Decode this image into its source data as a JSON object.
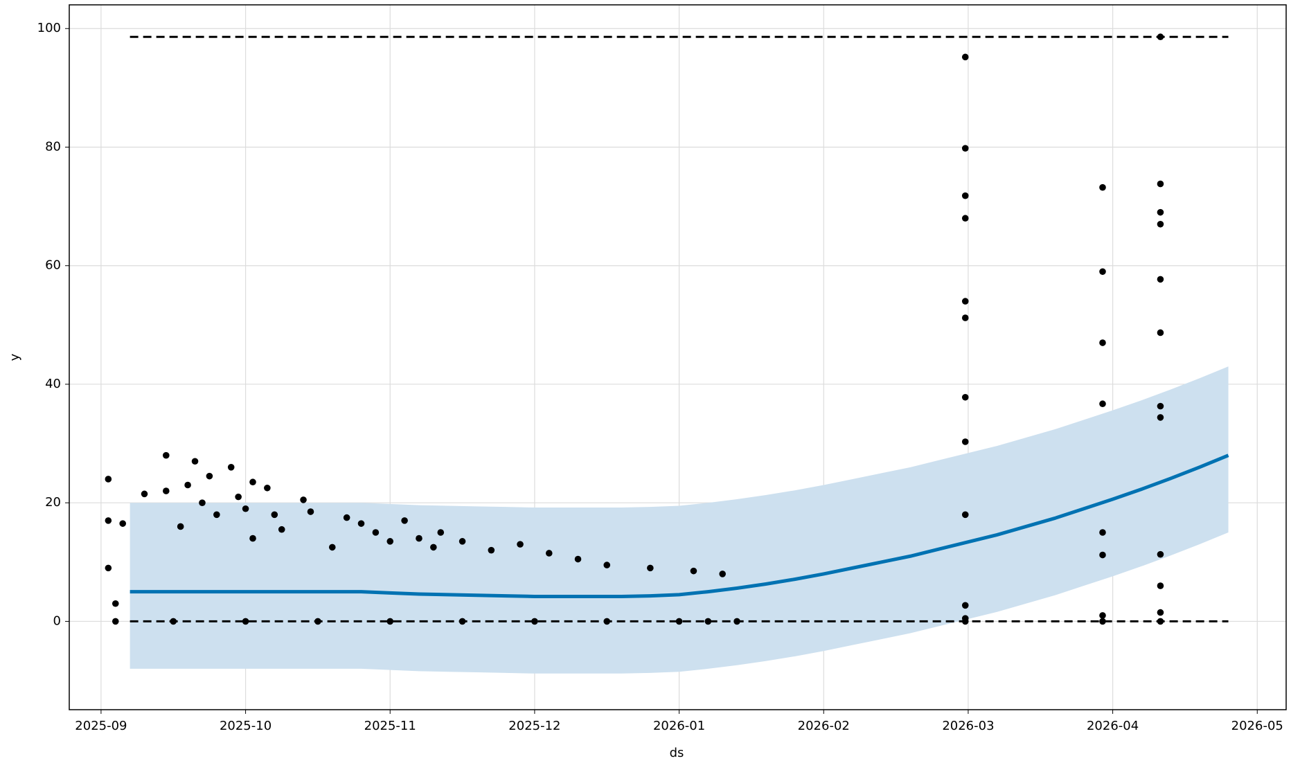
{
  "chart_data": {
    "type": "forecast",
    "xlabel": "ds",
    "ylabel": "y",
    "xlim": [
      -0.22,
      8.2
    ],
    "ylim": [
      -14.9,
      104.0
    ],
    "xticks": [
      {
        "value": 0,
        "label": "2025-09"
      },
      {
        "value": 1,
        "label": "2025-10"
      },
      {
        "value": 2,
        "label": "2025-11"
      },
      {
        "value": 3,
        "label": "2025-12"
      },
      {
        "value": 4,
        "label": "2026-01"
      },
      {
        "value": 5,
        "label": "2026-02"
      },
      {
        "value": 6,
        "label": "2026-03"
      },
      {
        "value": 7,
        "label": "2026-04"
      },
      {
        "value": 8,
        "label": "2026-05"
      }
    ],
    "yticks": [
      0,
      20,
      40,
      60,
      80,
      100
    ],
    "grid": true,
    "cap": 98.6,
    "floor": 0,
    "forecast": {
      "color": "#0072b2",
      "x": [
        0.2,
        0.4,
        0.6,
        0.8,
        1.0,
        1.2,
        1.4,
        1.6,
        1.8,
        2.0,
        2.2,
        2.4,
        2.6,
        2.8,
        3.0,
        3.2,
        3.4,
        3.6,
        3.8,
        4.0,
        4.2,
        4.4,
        4.6,
        4.8,
        5.0,
        5.2,
        5.4,
        5.6,
        5.8,
        6.0,
        6.2,
        6.4,
        6.6,
        6.8,
        7.0,
        7.2,
        7.4,
        7.6,
        7.8
      ],
      "values": [
        5,
        5,
        5,
        5,
        5,
        5,
        5,
        5,
        5,
        4.8,
        4.6,
        4.5,
        4.4,
        4.3,
        4.2,
        4.2,
        4.2,
        4.2,
        4.3,
        4.5,
        5,
        5.6,
        6.3,
        7.1,
        8,
        9,
        10,
        11,
        12.2,
        13.4,
        14.6,
        16,
        17.4,
        19,
        20.6,
        22.3,
        24.1,
        26,
        28
      ]
    },
    "interval": {
      "color": "#cde0ef",
      "upper": [
        20,
        20,
        20,
        20,
        20,
        20,
        20,
        20,
        20,
        19.8,
        19.6,
        19.5,
        19.4,
        19.3,
        19.2,
        19.2,
        19.2,
        19.2,
        19.3,
        19.5,
        20,
        20.6,
        21.3,
        22.1,
        23,
        24,
        25,
        26,
        27.2,
        28.4,
        29.6,
        31,
        32.4,
        34,
        35.6,
        37.3,
        39.1,
        41,
        43
      ],
      "lower": [
        -8,
        -8,
        -8,
        -8,
        -8,
        -8,
        -8,
        -8,
        -8,
        -8.2,
        -8.4,
        -8.5,
        -8.6,
        -8.7,
        -8.8,
        -8.8,
        -8.8,
        -8.8,
        -8.7,
        -8.5,
        -8,
        -7.4,
        -6.7,
        -5.9,
        -5,
        -4,
        -3,
        -2,
        -0.8,
        0.4,
        1.6,
        3,
        4.4,
        6,
        7.6,
        9.3,
        11.1,
        13,
        15
      ]
    },
    "points": {
      "color": "#000000",
      "x": [
        0.05,
        0.05,
        0.05,
        0.1,
        0.15,
        0.3,
        0.45,
        0.45,
        0.55,
        0.6,
        0.65,
        0.7,
        0.75,
        0.8,
        0.9,
        0.95,
        1.0,
        1.05,
        1.05,
        1.15,
        1.2,
        1.25,
        1.4,
        1.45,
        1.6,
        1.7,
        1.8,
        1.9,
        2.0,
        2.1,
        2.2,
        2.3,
        2.35,
        2.5,
        2.7,
        2.9,
        3.1,
        3.3,
        3.5,
        3.8,
        4.1,
        4.3,
        0.1,
        0.5,
        1.0,
        1.5,
        2.0,
        2.5,
        3.0,
        3.5,
        4.0,
        4.2,
        4.4,
        5.98,
        5.98,
        5.98,
        5.98,
        5.98,
        5.98,
        5.98,
        5.98,
        5.98,
        5.98,
        5.98,
        5.98,
        6.93,
        6.93,
        6.93,
        6.93,
        6.93,
        6.93,
        6.93,
        6.93,
        7.33,
        7.33,
        7.33,
        7.33,
        7.33,
        7.33,
        7.33,
        7.33,
        7.33,
        7.33,
        7.33,
        7.33
      ],
      "values": [
        24,
        17,
        9,
        3,
        16.5,
        21.5,
        28,
        22,
        16,
        23,
        27,
        20,
        24.5,
        18,
        26,
        21,
        19,
        23.5,
        14,
        22.5,
        18,
        15.5,
        20.5,
        18.5,
        12.5,
        17.5,
        16.5,
        15,
        13.5,
        17,
        14,
        12.5,
        15,
        13.5,
        12,
        13,
        11.5,
        10.5,
        9.5,
        9,
        8.5,
        8,
        0,
        0,
        0,
        0,
        0,
        0,
        0,
        0,
        0,
        0,
        0,
        95.2,
        79.8,
        71.8,
        68,
        54,
        51.2,
        37.8,
        30.3,
        18,
        2.7,
        0.5,
        0,
        73.2,
        59,
        47,
        36.7,
        15,
        11.2,
        1,
        0,
        98.6,
        73.8,
        69,
        67,
        57.7,
        48.7,
        36.3,
        34.4,
        11.3,
        6,
        1.5,
        0
      ]
    }
  }
}
